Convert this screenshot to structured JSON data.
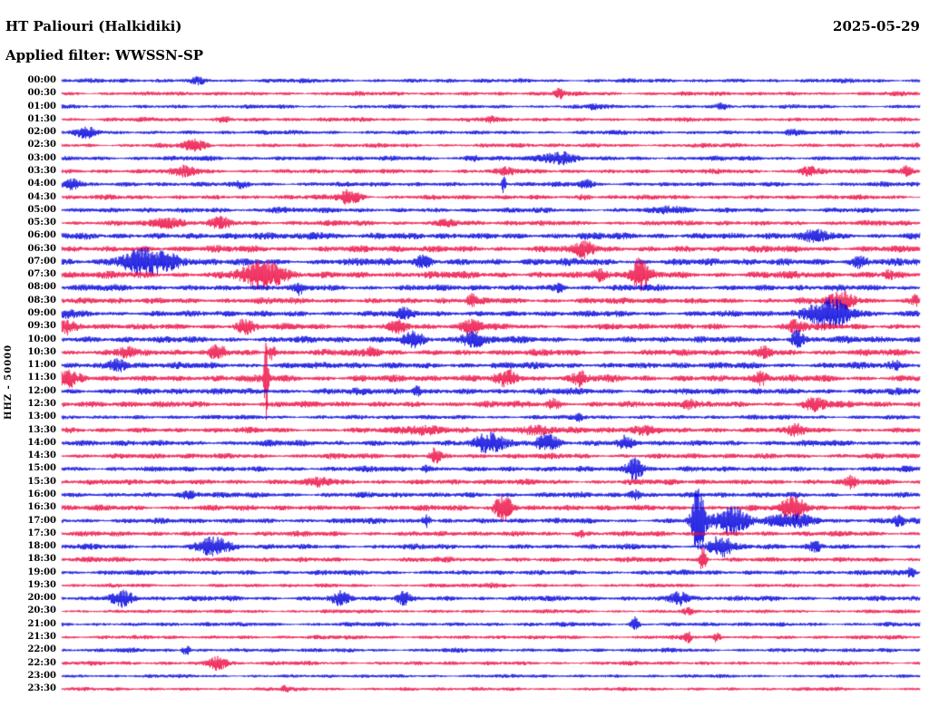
{
  "header": {
    "station_title": "HT Paliouri (Halkidiki)",
    "date": "2025-05-29",
    "filter_line": "Applied filter: WWSSN-SP"
  },
  "axis": {
    "ylabel": "HHZ - 50000"
  },
  "chart_data": {
    "type": "line",
    "subtype": "helicorder-seismogram",
    "station": "HT Paliouri (Halkidiki)",
    "date": "2025-05-29",
    "filter": "WWSSN-SP",
    "channel_scale_label": "HHZ - 50000",
    "minutes_per_row": 30,
    "rows_count": 48,
    "legend_position": "none",
    "grid": false,
    "colors": {
      "even_row": "#0000dd",
      "odd_row": "#ec0c44"
    },
    "events_format": "[position_fraction_of_row, peak_amplitude_px, gaussian_width_px]",
    "amplitude_units": "pixels_at_render_scale",
    "rows": [
      {
        "label": "00:00",
        "base": 1.8,
        "events": [
          [
            0.16,
            3,
            6
          ]
        ]
      },
      {
        "label": "00:30",
        "base": 1.8,
        "events": [
          [
            0.58,
            5,
            4
          ]
        ]
      },
      {
        "label": "01:00",
        "base": 1.7,
        "events": [
          [
            0.62,
            3,
            4
          ],
          [
            0.77,
            2.5,
            5
          ]
        ]
      },
      {
        "label": "01:30",
        "base": 1.8,
        "events": [
          [
            0.19,
            3,
            5
          ],
          [
            0.5,
            3,
            5
          ]
        ]
      },
      {
        "label": "02:00",
        "base": 1.8,
        "events": [
          [
            0.03,
            5,
            8
          ],
          [
            0.85,
            3,
            5
          ]
        ]
      },
      {
        "label": "02:30",
        "base": 1.8,
        "events": [
          [
            0.155,
            5,
            9
          ]
        ]
      },
      {
        "label": "03:00",
        "base": 2.0,
        "events": [
          [
            0.58,
            6,
            13
          ],
          [
            0.48,
            3,
            6
          ]
        ]
      },
      {
        "label": "03:30",
        "base": 2.0,
        "events": [
          [
            0.145,
            5,
            9
          ],
          [
            0.52,
            3,
            6
          ],
          [
            0.87,
            5,
            7
          ],
          [
            0.985,
            6,
            4
          ]
        ]
      },
      {
        "label": "04:00",
        "base": 2.0,
        "events": [
          [
            0.013,
            6,
            7
          ],
          [
            0.21,
            3,
            6
          ],
          [
            0.515,
            10,
            1.5
          ],
          [
            0.61,
            4,
            5
          ]
        ]
      },
      {
        "label": "04:30",
        "base": 2.0,
        "events": [
          [
            0.335,
            8,
            9
          ],
          [
            0.61,
            3,
            5
          ]
        ]
      },
      {
        "label": "05:00",
        "base": 2.1,
        "events": [
          [
            0.71,
            4,
            9
          ],
          [
            0.25,
            3,
            8
          ]
        ]
      },
      {
        "label": "05:30",
        "base": 2.2,
        "events": [
          [
            0.124,
            5,
            11
          ],
          [
            0.185,
            5,
            9
          ],
          [
            0.45,
            3,
            8
          ]
        ]
      },
      {
        "label": "06:00",
        "base": 2.8,
        "events": [
          [
            0.88,
            5,
            9
          ],
          [
            0.3,
            3,
            10
          ]
        ]
      },
      {
        "label": "06:30",
        "base": 2.8,
        "events": [
          [
            0.61,
            8,
            7
          ]
        ]
      },
      {
        "label": "07:00",
        "base": 3.0,
        "events": [
          [
            0.1,
            13,
            22
          ],
          [
            0.42,
            5,
            7
          ],
          [
            0.93,
            5,
            7
          ]
        ]
      },
      {
        "label": "07:30",
        "base": 3.0,
        "events": [
          [
            0.235,
            15,
            16
          ],
          [
            0.626,
            6,
            5
          ],
          [
            0.674,
            17,
            7
          ],
          [
            0.964,
            4,
            4
          ]
        ]
      },
      {
        "label": "08:00",
        "base": 2.6,
        "events": [
          [
            0.277,
            6,
            3
          ],
          [
            0.58,
            4,
            5
          ]
        ]
      },
      {
        "label": "08:30",
        "base": 2.6,
        "events": [
          [
            0.478,
            7,
            3
          ],
          [
            0.91,
            8,
            11
          ],
          [
            0.995,
            5,
            3
          ]
        ]
      },
      {
        "label": "09:00",
        "base": 2.6,
        "events": [
          [
            0.007,
            4,
            6
          ],
          [
            0.4,
            4,
            6
          ],
          [
            0.895,
            15,
            18
          ]
        ]
      },
      {
        "label": "09:30",
        "base": 2.6,
        "events": [
          [
            0.007,
            6,
            7
          ],
          [
            0.213,
            7,
            7
          ],
          [
            0.393,
            6,
            7
          ],
          [
            0.478,
            7,
            7
          ],
          [
            0.857,
            6,
            7
          ]
        ]
      },
      {
        "label": "10:00",
        "base": 2.7,
        "events": [
          [
            0.41,
            7,
            9
          ],
          [
            0.478,
            8,
            9
          ],
          [
            0.857,
            10,
            5
          ]
        ]
      },
      {
        "label": "10:30",
        "base": 2.7,
        "events": [
          [
            0.076,
            5,
            6
          ],
          [
            0.182,
            6,
            7
          ],
          [
            0.245,
            8,
            3
          ],
          [
            0.362,
            5,
            6
          ],
          [
            0.82,
            6,
            5
          ]
        ]
      },
      {
        "label": "11:00",
        "base": 2.7,
        "events": [
          [
            0.066,
            6,
            7
          ],
          [
            0.97,
            4,
            4
          ]
        ]
      },
      {
        "label": "11:30",
        "base": 2.9,
        "events": [
          [
            0.007,
            7,
            9
          ],
          [
            0.238,
            55,
            1.6
          ],
          [
            0.52,
            8,
            9
          ],
          [
            0.604,
            6,
            5
          ],
          [
            0.815,
            6,
            5
          ]
        ]
      },
      {
        "label": "12:00",
        "base": 2.7,
        "events": [
          [
            0.414,
            6,
            3
          ]
        ]
      },
      {
        "label": "12:30",
        "base": 2.6,
        "events": [
          [
            0.573,
            5,
            5
          ],
          [
            0.73,
            5,
            5
          ],
          [
            0.878,
            6,
            9
          ]
        ]
      },
      {
        "label": "13:00",
        "base": 1.9,
        "events": [
          [
            0.604,
            3,
            4
          ]
        ]
      },
      {
        "label": "13:30",
        "base": 2.3,
        "events": [
          [
            0.42,
            4,
            18
          ],
          [
            0.55,
            4,
            18
          ],
          [
            0.68,
            4,
            14
          ],
          [
            0.857,
            5,
            7
          ]
        ]
      },
      {
        "label": "14:00",
        "base": 2.5,
        "events": [
          [
            0.5,
            10,
            11
          ],
          [
            0.565,
            10,
            9
          ],
          [
            0.657,
            6,
            5
          ]
        ]
      },
      {
        "label": "14:30",
        "base": 2.3,
        "events": [
          [
            0.435,
            8,
            4
          ]
        ]
      },
      {
        "label": "15:00",
        "base": 2.3,
        "events": [
          [
            0.425,
            5,
            3
          ],
          [
            0.668,
            12,
            7
          ]
        ]
      },
      {
        "label": "15:30",
        "base": 2.4,
        "events": [
          [
            0.92,
            6,
            3
          ],
          [
            0.3,
            3,
            10
          ]
        ]
      },
      {
        "label": "16:00",
        "base": 2.3,
        "events": [
          [
            0.668,
            6,
            5
          ],
          [
            0.15,
            3,
            8
          ]
        ]
      },
      {
        "label": "16:30",
        "base": 2.4,
        "events": [
          [
            0.515,
            14,
            7
          ],
          [
            0.853,
            14,
            9
          ]
        ]
      },
      {
        "label": "17:00",
        "base": 2.3,
        "events": [
          [
            0.425,
            7,
            3
          ],
          [
            0.742,
            38,
            5
          ],
          [
            0.78,
            14,
            14
          ],
          [
            0.85,
            7,
            18
          ],
          [
            0.975,
            5,
            4
          ]
        ]
      },
      {
        "label": "17:30",
        "base": 2.2,
        "events": [
          [
            0.604,
            3,
            5
          ]
        ]
      },
      {
        "label": "18:00",
        "base": 2.2,
        "events": [
          [
            0.177,
            10,
            11
          ],
          [
            0.768,
            12,
            9
          ],
          [
            0.878,
            5,
            5
          ]
        ]
      },
      {
        "label": "18:30",
        "base": 2.1,
        "events": [
          [
            0.747,
            14,
            2.5
          ]
        ]
      },
      {
        "label": "19:00",
        "base": 2.1,
        "events": [
          [
            0.99,
            6,
            3
          ]
        ]
      },
      {
        "label": "19:30",
        "base": 1.6,
        "events": [
          [
            0.5,
            2,
            8
          ]
        ]
      },
      {
        "label": "20:00",
        "base": 2.2,
        "events": [
          [
            0.07,
            8,
            9
          ],
          [
            0.325,
            6,
            7
          ],
          [
            0.398,
            7,
            5
          ],
          [
            0.72,
            7,
            7
          ]
        ]
      },
      {
        "label": "20:30",
        "base": 1.6,
        "events": [
          [
            0.73,
            3,
            4
          ]
        ]
      },
      {
        "label": "21:00",
        "base": 1.8,
        "events": [
          [
            0.668,
            7,
            3
          ]
        ]
      },
      {
        "label": "21:30",
        "base": 1.7,
        "events": [
          [
            0.73,
            6,
            2.5
          ],
          [
            0.763,
            5,
            2.5
          ]
        ]
      },
      {
        "label": "22:00",
        "base": 1.8,
        "events": [
          [
            0.145,
            6,
            3
          ]
        ]
      },
      {
        "label": "22:30",
        "base": 1.7,
        "events": [
          [
            0.182,
            8,
            7
          ]
        ]
      },
      {
        "label": "23:00",
        "base": 1.5,
        "events": []
      },
      {
        "label": "23:30",
        "base": 1.5,
        "events": [
          [
            0.26,
            3,
            3
          ]
        ]
      }
    ]
  }
}
